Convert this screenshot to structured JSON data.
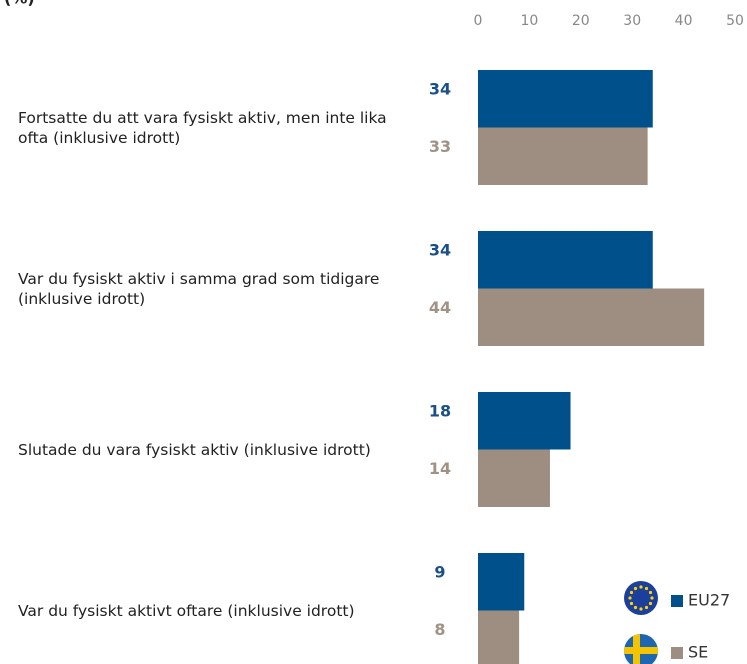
{
  "chart_data": {
    "type": "bar",
    "orientation": "horizontal",
    "title": "(%)",
    "categories": [
      "Fortsatte du att vara fysiskt aktiv, men inte lika ofta (inklusive idrott)",
      "Var du fysiskt aktiv i samma grad som tidigare (inklusive idrott)",
      "Slutade du vara fysiskt aktiv (inklusive idrott)",
      "Var du fysiskt aktivt oftare (inklusive idrott)"
    ],
    "series": [
      {
        "name": "EU27",
        "color": "#00508c",
        "label_color": "#1a4f88",
        "values": [
          34,
          34,
          18,
          9
        ]
      },
      {
        "name": "SE",
        "color": "#9e8e82",
        "label_color": "#a09285",
        "values": [
          33,
          44,
          14,
          8
        ]
      }
    ],
    "xlim": [
      0,
      50
    ],
    "xticks": [
      0,
      10,
      20,
      30,
      40,
      50
    ],
    "grid": false
  }
}
